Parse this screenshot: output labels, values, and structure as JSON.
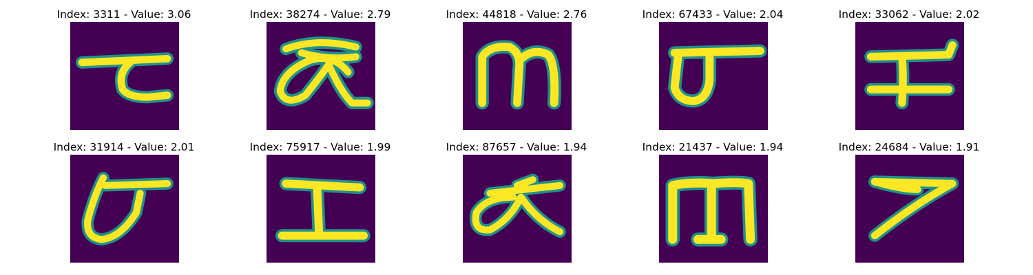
{
  "colors": {
    "background": "#440154",
    "stroke_core": "#fde725",
    "stroke_mid": "#35b779",
    "stroke_edge": "#21918c"
  },
  "panels": [
    {
      "title": "Index: 3311 - Value: 3.06",
      "glyph": "ta-like"
    },
    {
      "title": "Index: 38274 - Value: 2.79",
      "glyph": "alpha-loop"
    },
    {
      "title": "Index: 44818 - Value: 2.76",
      "glyph": "m-shape"
    },
    {
      "title": "Index: 67433 - Value: 2.04",
      "glyph": "sigma-like"
    },
    {
      "title": "Index: 33062 - Value: 2.02",
      "glyph": "i-beam-slanted"
    },
    {
      "title": "Index: 31914 - Value: 2.01",
      "glyph": "b-curl"
    },
    {
      "title": "Index: 75917 - Value: 1.99",
      "glyph": "i-beam"
    },
    {
      "title": "Index: 87657 - Value: 1.94",
      "glyph": "alpha-open"
    },
    {
      "title": "Index: 21437 - Value: 1.94",
      "glyph": "m-wide"
    },
    {
      "title": "Index: 24684 - Value: 1.91",
      "glyph": "seven-like"
    }
  ]
}
